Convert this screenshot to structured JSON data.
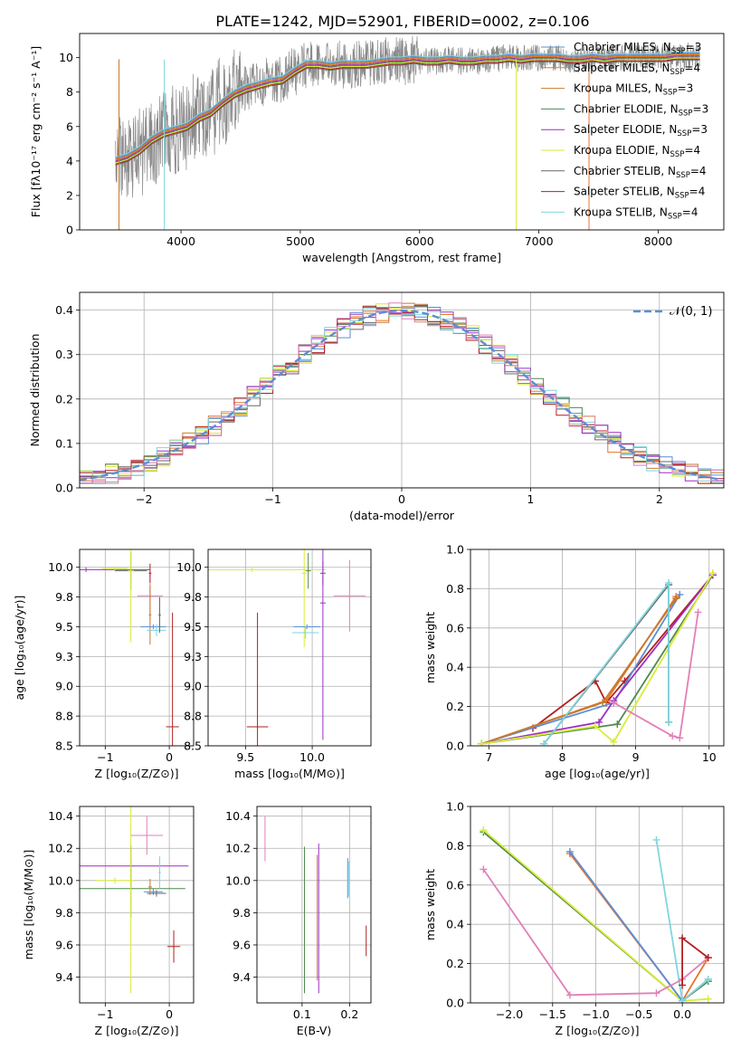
{
  "figure": {
    "title": "PLATE=1242, MJD=52901, FIBERID=0002, z=0.106"
  },
  "colors": {
    "chabrier_miles": "#5b8ed6",
    "salpeter_miles": "#e8742a",
    "kroupa_miles": "#c47b2e",
    "chabrier_elodie": "#4f8a4f",
    "salpeter_elodie": "#9b2fc2",
    "kroupa_elodie": "#d9ec36",
    "chabrier_stelib": "#666666",
    "salpeter_stelib": "#b21f1f",
    "kroupa_stelib": "#7fd6de",
    "pink": "#e27fb8",
    "normal_curve": "#5b8ed6",
    "grid": "#b0b0b0"
  },
  "chart_data": [
    {
      "id": "spectrum",
      "type": "line",
      "xlabel": "wavelength [Angstrom, rest frame]",
      "ylabel": "Flux [fλ10⁻¹⁷ erg cm⁻² s⁻¹ A⁻¹]",
      "xlim": [
        3150,
        8550
      ],
      "ylim": [
        0,
        11.4
      ],
      "xticks": [
        4000,
        5000,
        6000,
        7000,
        8000
      ],
      "yticks": [
        0,
        2,
        4,
        6,
        8,
        10
      ],
      "grid": false,
      "legend_position": "top-right",
      "legend": [
        "Chabrier MILES, N_SSP=3",
        "Salpeter MILES, N_SSP=4",
        "Kroupa MILES, N_SSP=3",
        "Chabrier ELODIE, N_SSP=3",
        "Salpeter ELODIE, N_SSP=3",
        "Kroupa ELODIE, N_SSP=4",
        "Chabrier STELIB, N_SSP=4",
        "Salpeter STELIB, N_SSP=4",
        "Kroupa STELIB, N_SSP=4"
      ],
      "data_x": [
        3450,
        3550,
        3650,
        3750,
        3850,
        3950,
        4050,
        4150,
        4250,
        4350,
        4450,
        4550,
        4650,
        4750,
        4850,
        4950,
        5050,
        5150,
        5250,
        5350,
        5450,
        5550,
        5650,
        5750,
        5850,
        5950,
        6050,
        6150,
        6250,
        6350,
        6450,
        6550,
        6650,
        6750,
        6850,
        6950,
        7050,
        7150,
        7250,
        7350,
        7450,
        7550,
        7650,
        7750,
        7850,
        7950,
        8050,
        8150,
        8250,
        8350
      ],
      "data_y": [
        4.0,
        4.2,
        4.6,
        5.2,
        5.6,
        5.8,
        6.0,
        6.5,
        6.8,
        7.4,
        7.9,
        8.2,
        8.4,
        8.6,
        8.7,
        9.2,
        9.6,
        9.6,
        9.5,
        9.6,
        9.6,
        9.6,
        9.7,
        9.8,
        9.8,
        9.9,
        9.8,
        9.8,
        9.9,
        9.8,
        9.8,
        9.9,
        9.9,
        10.0,
        9.9,
        10.0,
        10.0,
        10.0,
        9.9,
        9.9,
        10.0,
        9.9,
        10.0,
        10.0,
        10.0,
        10.0,
        10.0,
        10.1,
        10.1,
        10.1
      ]
    },
    {
      "id": "residuals",
      "type": "line",
      "xlabel": "(data-model)/error",
      "ylabel": "Normed distribution",
      "xlim": [
        -2.5,
        2.5
      ],
      "ylim": [
        0,
        0.44
      ],
      "xticks": [
        -2,
        -1,
        0,
        1,
        2
      ],
      "yticks": [
        0.0,
        0.1,
        0.2,
        0.3,
        0.4
      ],
      "grid": true,
      "legend_position": "top-right",
      "legend": [
        "𝒩(0, 1)"
      ]
    },
    {
      "id": "age_vs_Z",
      "type": "scatter",
      "xlabel": "Z [log₁₀(Z/Z⊙)]",
      "ylabel": "age  [log₁₀(age/yr)]",
      "xlim": [
        -1.4,
        0.38
      ],
      "ylim": [
        8.5,
        10.15
      ],
      "xticks": [
        -1,
        0
      ],
      "yticks": [
        8.5,
        8.75,
        9.0,
        9.25,
        9.5,
        9.75,
        10.0
      ],
      "grid": true,
      "points": [
        {
          "x": -1.3,
          "y": 9.98,
          "xerr": 1.0,
          "yerr": 0.02,
          "c": "salpeter_elodie"
        },
        {
          "x": -0.85,
          "y": 9.99,
          "xerr": 0.2,
          "yerr": 0.02,
          "c": "kroupa_elodie"
        },
        {
          "x": -0.6,
          "y": 9.97,
          "xerr": 0.25,
          "yerr": 0.16,
          "c": "chabrier_elodie"
        },
        {
          "x": -0.6,
          "y": 9.97,
          "xerr": 0.05,
          "yerr": 0.6,
          "c": "kroupa_elodie"
        },
        {
          "x": -0.3,
          "y": 9.76,
          "xerr": 0.2,
          "yerr": 0.2,
          "c": "pink"
        },
        {
          "x": -0.3,
          "y": 9.6,
          "xerr": 0.02,
          "yerr": 0.25,
          "c": "kroupa_miles"
        },
        {
          "x": -0.3,
          "y": 9.95,
          "xerr": 0.02,
          "yerr": 0.08,
          "c": "salpeter_stelib"
        },
        {
          "x": -0.25,
          "y": 9.5,
          "xerr": 0.2,
          "yerr": 0.02,
          "c": "chabrier_miles"
        },
        {
          "x": -0.2,
          "y": 9.47,
          "xerr": 0.15,
          "yerr": 0.05,
          "c": "kroupa_stelib"
        },
        {
          "x": -0.15,
          "y": 9.6,
          "xerr": 0.02,
          "yerr": 0.15,
          "c": "chabrier_stelib"
        },
        {
          "x": 0.05,
          "y": 8.66,
          "xerr": 0.1,
          "yerr": 0.96,
          "c": "salpeter_stelib"
        }
      ]
    },
    {
      "id": "age_vs_mass",
      "type": "scatter",
      "xlabel": "mass [log₁₀(M/M⊙)]",
      "ylabel": "",
      "xlim": [
        9.22,
        10.44
      ],
      "ylim": [
        8.5,
        10.15
      ],
      "xticks": [
        9.5,
        10.0
      ],
      "yticks": [
        8.5,
        8.75,
        9.0,
        9.25,
        9.5,
        9.75,
        10.0
      ],
      "grid": true,
      "points": [
        {
          "x": 9.55,
          "y": 9.98,
          "xerr": 0.55,
          "yerr": 0.02,
          "c": "kroupa_elodie"
        },
        {
          "x": 9.97,
          "y": 9.97,
          "xerr": 0.02,
          "yerr": 0.15,
          "c": "chabrier_elodie"
        },
        {
          "x": 9.94,
          "y": 9.95,
          "xerr": 0.02,
          "yerr": 0.62,
          "c": "kroupa_elodie"
        },
        {
          "x": 10.08,
          "y": 9.95,
          "xerr": 0.02,
          "yerr": 0.1,
          "c": "salpeter_elodie"
        },
        {
          "x": 10.08,
          "y": 9.7,
          "xerr": 0.02,
          "yerr": 1.15,
          "c": "salpeter_elodie"
        },
        {
          "x": 10.28,
          "y": 9.76,
          "xerr": 0.12,
          "yerr": 0.3,
          "c": "pink"
        },
        {
          "x": 9.96,
          "y": 9.5,
          "xerr": 0.1,
          "yerr": 0.02,
          "c": "chabrier_miles"
        },
        {
          "x": 9.95,
          "y": 9.45,
          "xerr": 0.1,
          "yerr": 0.05,
          "c": "kroupa_stelib"
        },
        {
          "x": 9.59,
          "y": 8.66,
          "xerr": 0.08,
          "yerr": 0.96,
          "c": "salpeter_stelib"
        }
      ]
    },
    {
      "id": "mw_vs_age",
      "type": "line",
      "xlabel": "age  [log₁₀(age/yr)]",
      "ylabel": "mass weight",
      "xlim": [
        6.75,
        10.2
      ],
      "ylim": [
        0,
        1.0
      ],
      "xticks": [
        7,
        8,
        9,
        10
      ],
      "yticks": [
        0.0,
        0.2,
        0.4,
        0.6,
        0.8,
        1.0
      ],
      "grid": true,
      "series": [
        {
          "c": "salpeter_stelib",
          "x": [
            7.6,
            8.45,
            8.6,
            8.85,
            10.05
          ],
          "y": [
            0.09,
            0.33,
            0.22,
            0.33,
            0.87
          ]
        },
        {
          "c": "chabrier_miles",
          "x": [
            6.9,
            8.7,
            9.6
          ],
          "y": [
            0.01,
            0.22,
            0.77
          ]
        },
        {
          "c": "salpeter_miles",
          "x": [
            6.9,
            8.6,
            9.55
          ],
          "y": [
            0.01,
            0.23,
            0.76
          ]
        },
        {
          "c": "kroupa_miles",
          "x": [
            6.9,
            8.55,
            9.55
          ],
          "y": [
            0.01,
            0.22,
            0.75
          ]
        },
        {
          "c": "chabrier_elodie",
          "x": [
            6.9,
            8.75,
            10.05
          ],
          "y": [
            0.01,
            0.11,
            0.87
          ]
        },
        {
          "c": "salpeter_elodie",
          "x": [
            6.9,
            8.5,
            8.7,
            10.05
          ],
          "y": [
            0.01,
            0.12,
            0.23,
            0.87
          ]
        },
        {
          "c": "kroupa_elodie",
          "x": [
            6.9,
            8.45,
            8.7,
            10.05
          ],
          "y": [
            0.01,
            0.1,
            0.02,
            0.88
          ]
        },
        {
          "c": "pink",
          "x": [
            8.7,
            9.5,
            9.6,
            9.85
          ],
          "y": [
            0.22,
            0.05,
            0.04,
            0.68
          ]
        },
        {
          "c": "chabrier_stelib",
          "x": [
            7.75,
            9.45,
            9.45
          ],
          "y": [
            0.01,
            0.82,
            0.12
          ]
        },
        {
          "c": "kroupa_stelib",
          "x": [
            7.75,
            9.45,
            9.45
          ],
          "y": [
            0.01,
            0.83,
            0.12
          ]
        }
      ]
    },
    {
      "id": "mass_vs_Z",
      "type": "scatter",
      "xlabel": "Z [log₁₀(Z/Z⊙)]",
      "ylabel": "mass [log₁₀(M/M⊙)]",
      "xlim": [
        -1.4,
        0.38
      ],
      "ylim": [
        9.24,
        10.46
      ],
      "xticks": [
        -1,
        0
      ],
      "yticks": [
        9.4,
        9.6,
        9.8,
        10.0,
        10.2,
        10.4
      ],
      "grid": true,
      "points": [
        {
          "x": -0.6,
          "y": 10.09,
          "xerr": 0.9,
          "yerr": 0.13,
          "c": "salpeter_elodie"
        },
        {
          "x": -0.6,
          "y": 9.95,
          "xerr": 0.85,
          "yerr": 0.18,
          "c": "chabrier_elodie"
        },
        {
          "x": -0.85,
          "y": 10.0,
          "xerr": 0.3,
          "yerr": 0.02,
          "c": "kroupa_elodie"
        },
        {
          "x": -0.6,
          "y": 10.0,
          "xerr": 0.05,
          "yerr": 0.7,
          "c": "kroupa_elodie"
        },
        {
          "x": -0.35,
          "y": 10.28,
          "xerr": 0.25,
          "yerr": 0.12,
          "c": "pink"
        },
        {
          "x": -0.3,
          "y": 9.96,
          "xerr": 0.03,
          "yerr": 0.05,
          "c": "kroupa_miles"
        },
        {
          "x": -0.25,
          "y": 9.93,
          "xerr": 0.15,
          "yerr": 0.02,
          "c": "chabrier_miles"
        },
        {
          "x": -0.2,
          "y": 9.92,
          "xerr": 0.15,
          "yerr": 0.02,
          "c": "chabrier_stelib"
        },
        {
          "x": -0.15,
          "y": 10.05,
          "xerr": 0.02,
          "yerr": 0.1,
          "c": "kroupa_stelib"
        },
        {
          "x": 0.07,
          "y": 9.59,
          "xerr": 0.1,
          "yerr": 0.1,
          "c": "salpeter_stelib"
        }
      ]
    },
    {
      "id": "mass_vs_ebv",
      "type": "scatter",
      "xlabel": "E(B-V)",
      "ylabel": "",
      "xlim": [
        0.005,
        0.245
      ],
      "ylim": [
        9.24,
        10.46
      ],
      "xticks": [
        0.1,
        0.2
      ],
      "yticks": [
        9.4,
        9.6,
        9.8,
        10.0,
        10.2,
        10.4
      ],
      "grid": true,
      "bars": [
        {
          "x": 0.022,
          "y0": 10.12,
          "y1": 10.4,
          "c": "pink"
        },
        {
          "x": 0.105,
          "y0": 9.3,
          "y1": 10.21,
          "c": "chabrier_elodie"
        },
        {
          "x": 0.132,
          "y0": 9.38,
          "y1": 10.16,
          "c": "kroupa_miles"
        },
        {
          "x": 0.135,
          "y0": 9.3,
          "y1": 10.23,
          "c": "salpeter_elodie"
        },
        {
          "x": 0.196,
          "y0": 9.89,
          "y1": 10.14,
          "c": "chabrier_miles"
        },
        {
          "x": 0.198,
          "y0": 9.9,
          "y1": 10.12,
          "c": "kroupa_stelib"
        },
        {
          "x": 0.235,
          "y0": 9.53,
          "y1": 9.72,
          "c": "salpeter_stelib"
        }
      ]
    },
    {
      "id": "mw_vs_Z",
      "type": "line",
      "xlabel": "Z [log₁₀(Z/Z⊙)]",
      "ylabel": "mass weight",
      "xlim": [
        -2.45,
        0.48
      ],
      "ylim": [
        0,
        1.0
      ],
      "xticks": [
        -2.0,
        -1.5,
        -1.0,
        -0.5,
        0.0
      ],
      "yticks": [
        0.0,
        0.2,
        0.4,
        0.6,
        0.8,
        1.0
      ],
      "grid": true,
      "series": [
        {
          "c": "chabrier_elodie",
          "x": [
            -2.3,
            0.0,
            0.3
          ],
          "y": [
            0.87,
            0.01,
            0.11
          ]
        },
        {
          "c": "kroupa_elodie",
          "x": [
            -2.3,
            0.0,
            0.3
          ],
          "y": [
            0.88,
            0.01,
            0.02
          ]
        },
        {
          "c": "salpeter_miles",
          "x": [
            -1.3,
            0.0,
            0.3
          ],
          "y": [
            0.76,
            0.01,
            0.23
          ]
        },
        {
          "c": "chabrier_miles",
          "x": [
            -1.3,
            0.0,
            0.3
          ],
          "y": [
            0.77,
            0.01,
            0.12
          ]
        },
        {
          "c": "kroupa_stelib",
          "x": [
            -0.3,
            0.0,
            0.3
          ],
          "y": [
            0.83,
            0.01,
            0.12
          ]
        },
        {
          "c": "pink",
          "x": [
            -2.3,
            -1.3,
            -0.3,
            0.0,
            0.3
          ],
          "y": [
            0.68,
            0.04,
            0.05,
            0.12,
            0.23
          ]
        },
        {
          "c": "salpeter_stelib",
          "x": [
            0.0,
            0.0,
            0.3
          ],
          "y": [
            0.09,
            0.33,
            0.23
          ]
        }
      ]
    }
  ]
}
